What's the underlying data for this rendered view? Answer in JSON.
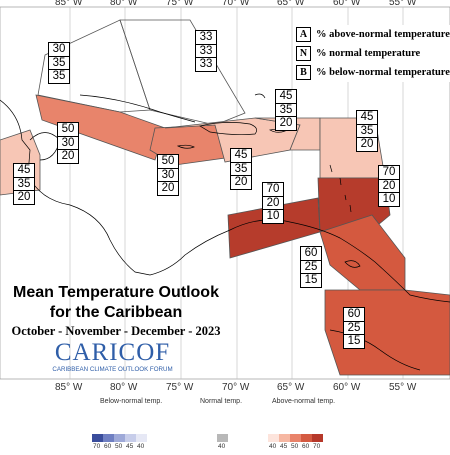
{
  "map": {
    "title_line1": "Mean Temperature Outlook",
    "title_line2": "for the Caribbean",
    "period": "October - November - December - 2023",
    "logo_main": "CARICOF",
    "logo_sub": "CARIBBEAN CLIMATE OUTLOOK FORUM",
    "longitude_labels": [
      "85° W",
      "80° W",
      "75° W",
      "70° W",
      "65° W",
      "60° W",
      "55° W"
    ],
    "zones": [
      {
        "id": "bahamas-east",
        "values": [
          "33",
          "33",
          "33"
        ],
        "category": "climatology"
      },
      {
        "id": "bahamas-west",
        "values": [
          "30",
          "35",
          "35"
        ],
        "category": "normal"
      },
      {
        "id": "cuba",
        "values": [
          "50",
          "30",
          "20"
        ],
        "category": "above-50"
      },
      {
        "id": "jamaica",
        "values": [
          "50",
          "30",
          "20"
        ],
        "category": "above-50"
      },
      {
        "id": "belize",
        "values": [
          "45",
          "35",
          "20"
        ],
        "category": "above-40"
      },
      {
        "id": "hispaniola",
        "values": [
          "45",
          "35",
          "20"
        ],
        "category": "above-40"
      },
      {
        "id": "puerto-rico",
        "values": [
          "45",
          "35",
          "20"
        ],
        "category": "above-40"
      },
      {
        "id": "leeward",
        "values": [
          "45",
          "35",
          "20"
        ],
        "category": "above-40"
      },
      {
        "id": "abc-islands",
        "values": [
          "70",
          "20",
          "10"
        ],
        "category": "above-70"
      },
      {
        "id": "windward",
        "values": [
          "70",
          "20",
          "10"
        ],
        "category": "above-70"
      },
      {
        "id": "trinidad",
        "values": [
          "60",
          "25",
          "15"
        ],
        "category": "above-60"
      },
      {
        "id": "guianas",
        "values": [
          "60",
          "25",
          "15"
        ],
        "category": "above-60"
      }
    ]
  },
  "legend": {
    "a_key": "A",
    "a_text": "% above-normal temperature",
    "n_key": "N",
    "n_text": "% normal temperature",
    "b_key": "B",
    "b_text": "% below-normal temperature"
  },
  "colorbar": {
    "below_title": "Below-normal temp.",
    "normal_title": "Normal temp.",
    "above_title": "Above-normal temp.",
    "below_ticks": [
      "70",
      "60",
      "50",
      "45",
      "40"
    ],
    "normal_tick": "40",
    "above_ticks": [
      "40",
      "45",
      "50",
      "60",
      "70"
    ],
    "below_colors": [
      "#3a4d9c",
      "#6f7fc2",
      "#9ea9d8",
      "#c7cdea",
      "#e6e8f5"
    ],
    "normal_color": "#b8b8b8",
    "above_colors": [
      "#fde4dc",
      "#f6b7a2",
      "#e9836a",
      "#d45a41",
      "#b6382a"
    ]
  },
  "colors": {
    "above-40": "#f7c6b5",
    "above-50": "#e8846b",
    "above-60": "#d4593f",
    "above-70": "#b63c2c",
    "climatology": "#ffffff",
    "normal": "#ffffff",
    "land": "#ffffff",
    "grid": "#bdbdbd"
  }
}
